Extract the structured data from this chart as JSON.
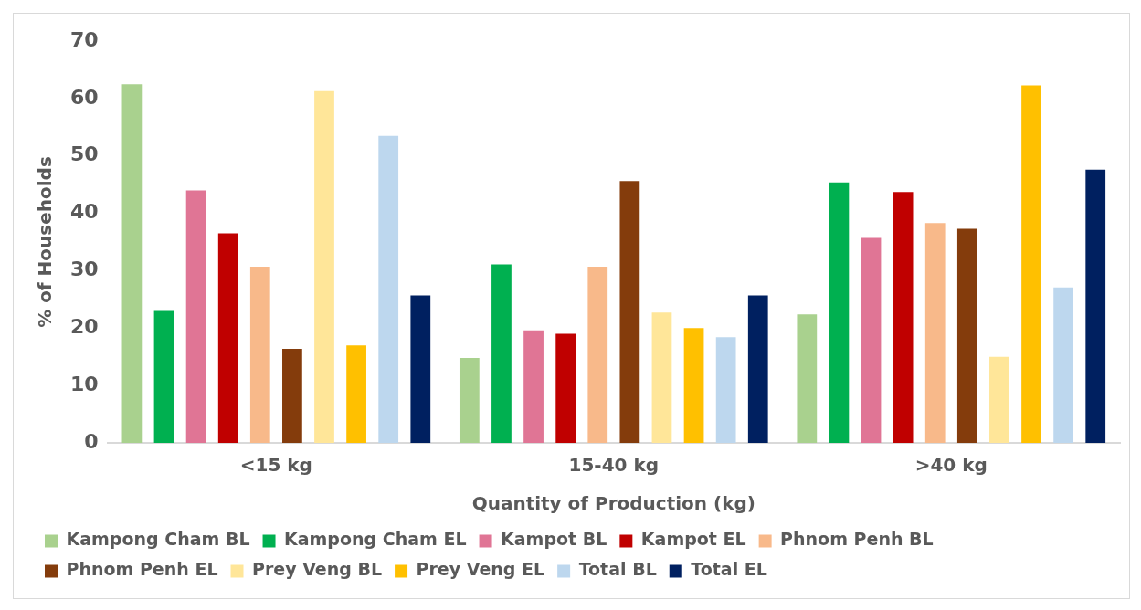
{
  "chart_data": {
    "type": "bar",
    "xlabel": "Quantity of Production (kg)",
    "ylabel": "% of Households",
    "categories": [
      "<15 kg",
      "15-40 kg",
      ">40 kg"
    ],
    "series": [
      {
        "name": "Kampong Cham BL",
        "color": "#a9d18e",
        "values": [
          62.5,
          14.8,
          22.4
        ]
      },
      {
        "name": "Kampong Cham EL",
        "color": "#00b050",
        "values": [
          23,
          31.1,
          45.4
        ]
      },
      {
        "name": "Kampot BL",
        "color": "#e07595",
        "values": [
          44,
          19.6,
          35.7
        ]
      },
      {
        "name": "Kampot EL",
        "color": "#c00000",
        "values": [
          36.5,
          19,
          43.7
        ]
      },
      {
        "name": "Phnom Penh BL",
        "color": "#f8b98a",
        "values": [
          30.7,
          30.7,
          38.3
        ]
      },
      {
        "name": "Phnom Penh EL",
        "color": "#843c0c",
        "values": [
          16.4,
          45.6,
          37.3
        ]
      },
      {
        "name": "Prey Veng BL",
        "color": "#ffe699",
        "values": [
          61.3,
          22.7,
          15
        ]
      },
      {
        "name": "Prey Veng EL",
        "color": "#ffc000",
        "values": [
          17,
          20,
          62.3
        ]
      },
      {
        "name": "Total BL",
        "color": "#bdd7ee",
        "values": [
          53.5,
          18.4,
          27.1
        ]
      },
      {
        "name": "Total EL",
        "color": "#002060",
        "values": [
          25.7,
          25.7,
          47.6
        ]
      }
    ],
    "ylim": [
      0,
      70
    ],
    "yticks": [
      0,
      10,
      20,
      30,
      40,
      50,
      60,
      70
    ],
    "grid": false,
    "legend": "bottom"
  }
}
